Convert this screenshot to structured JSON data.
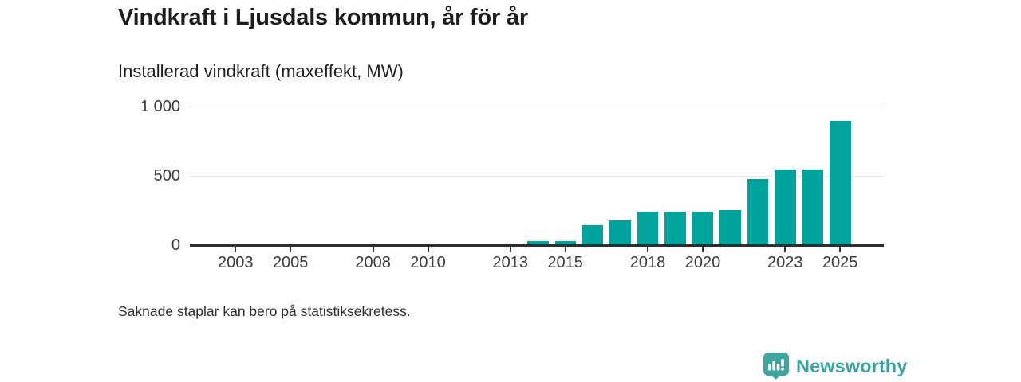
{
  "header": {
    "title": "Vindkraft i Ljusdals kommun, år för år",
    "subtitle": "Installerad vindkraft (maxeffekt, MW)"
  },
  "footnote": "Saknade staplar kan bero på statistiksekretess.",
  "branding": {
    "name": "Newsworthy",
    "icon": "newsworthy-speech-bubble-bar-chart-icon"
  },
  "colors": {
    "bar": "#00a49c",
    "brand_teal": "#38a3a0",
    "brand_icon_teal": "#3fa69f",
    "axis": "#2e2e2e",
    "gridline": "#e2e2e2",
    "title_text": "#1d1d1b",
    "tick_text": "#3c3c3c"
  },
  "chart_data": {
    "type": "bar",
    "title": "Vindkraft i Ljusdals kommun, år för år",
    "subtitle": "Installerad vindkraft (maxeffekt, MW)",
    "unit": "MW",
    "xlabel": "",
    "ylabel": "Installerad vindkraft (maxeffekt, MW)",
    "x": [
      2014,
      2015,
      2016,
      2017,
      2018,
      2019,
      2020,
      2021,
      2022,
      2023,
      2024,
      2025
    ],
    "values": [
      23,
      23,
      140,
      170,
      235,
      235,
      235,
      245,
      470,
      540,
      540,
      890
    ],
    "x_tick_years": [
      2003,
      2005,
      2008,
      2010,
      2013,
      2015,
      2018,
      2020,
      2023,
      2025
    ],
    "y_ticks": [
      {
        "value": 0,
        "label": "0"
      },
      {
        "value": 500,
        "label": "500"
      },
      {
        "value": 1000,
        "label": "1 000"
      }
    ],
    "ylim": [
      0,
      1000
    ],
    "xlim": [
      2001.5,
      2026.5
    ],
    "grid": "horizontal-y-only",
    "legend": "none",
    "footnote": "Saknade staplar kan bero på statistiksekretess."
  }
}
